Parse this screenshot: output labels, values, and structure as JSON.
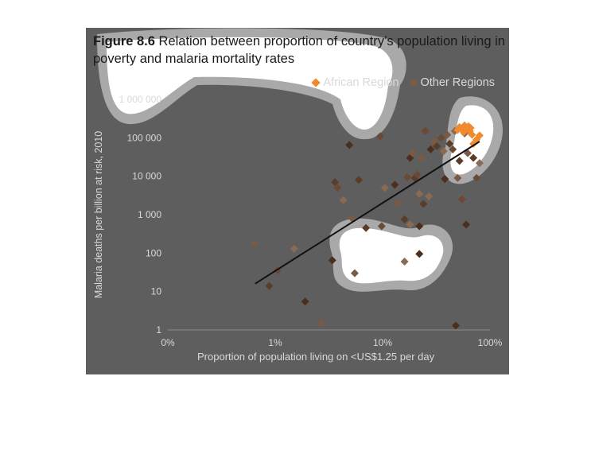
{
  "title_bold": "Figure 8.6",
  "title_rest": " Relation between proportion of country’s population living in poverty and malaria mortality rates",
  "colors": {
    "background": "#5e5e5e",
    "african_region": "#f08a2c",
    "other_regions": "#7a5a45",
    "trend_line": "#111111",
    "text": "#d9d9d9"
  },
  "chart_data": {
    "type": "scatter",
    "xscale": "log",
    "yscale": "log",
    "xlabel": "Proportion of population living on <US$1.25 per day",
    "ylabel": "Malaria deaths per billion at risk, 2010",
    "x_ticks": [
      "0%",
      "1%",
      "10%",
      "100%"
    ],
    "y_ticks": [
      "1",
      "10",
      "100",
      "1 000",
      "10 000",
      "100 000",
      "1 000 000"
    ],
    "xlim": [
      0.1,
      100
    ],
    "ylim": [
      1,
      1000000
    ],
    "legend_position": "top-right",
    "grid": false,
    "series": [
      {
        "name": "African Region",
        "color": "#f08a2c",
        "points": [
          [
            52,
            190000
          ],
          [
            55,
            175000
          ],
          [
            58,
            210000
          ],
          [
            60,
            165000
          ],
          [
            62,
            185000
          ],
          [
            65,
            150000
          ],
          [
            57,
            140000
          ],
          [
            68,
            120000
          ],
          [
            80,
            115000
          ],
          [
            70,
            70000
          ],
          [
            75,
            90000
          ],
          [
            50,
            160000
          ],
          [
            63,
            200000
          ],
          [
            66,
            180000
          ]
        ]
      },
      {
        "name": "Other Regions",
        "color": "#7a5a45",
        "points": [
          [
            0.65,
            180
          ],
          [
            0.88,
            14
          ],
          [
            1.05,
            35
          ],
          [
            1.5,
            130
          ],
          [
            1.9,
            5.5
          ],
          [
            2.7,
            1.5
          ],
          [
            3.6,
            7000
          ],
          [
            3.8,
            5000
          ],
          [
            4.3,
            2400
          ],
          [
            4.9,
            65000
          ],
          [
            5.2,
            800
          ],
          [
            6.0,
            8000
          ],
          [
            9.5,
            110000
          ],
          [
            10.5,
            5000
          ],
          [
            13,
            6000
          ],
          [
            14,
            2000
          ],
          [
            16,
            750
          ],
          [
            17,
            9500
          ],
          [
            18,
            550
          ],
          [
            18,
            30000
          ],
          [
            19,
            40000
          ],
          [
            20,
            9000
          ],
          [
            21,
            11000
          ],
          [
            22,
            3500
          ],
          [
            22,
            500
          ],
          [
            23,
            30000
          ],
          [
            24,
            1900
          ],
          [
            25,
            150000
          ],
          [
            27,
            3000
          ],
          [
            28,
            50000
          ],
          [
            30,
            80000
          ],
          [
            32,
            60000
          ],
          [
            35,
            100000
          ],
          [
            37,
            45000
          ],
          [
            38,
            8500
          ],
          [
            40,
            120000
          ],
          [
            42,
            70000
          ],
          [
            45,
            50000
          ],
          [
            47,
            150000
          ],
          [
            48,
            1.3
          ],
          [
            50,
            9000
          ],
          [
            52,
            25000
          ],
          [
            55,
            2500
          ],
          [
            58,
            130000
          ],
          [
            60,
            550
          ],
          [
            62,
            40000
          ],
          [
            70,
            30000
          ],
          [
            75,
            9000
          ],
          [
            80,
            22000
          ],
          [
            3.4,
            65
          ],
          [
            5.5,
            30
          ],
          [
            7,
            450
          ],
          [
            9.8,
            500
          ],
          [
            16,
            60
          ],
          [
            22,
            95
          ]
        ]
      }
    ],
    "trend_line": {
      "x": [
        0.65,
        80
      ],
      "y": [
        16,
        80000
      ]
    }
  }
}
